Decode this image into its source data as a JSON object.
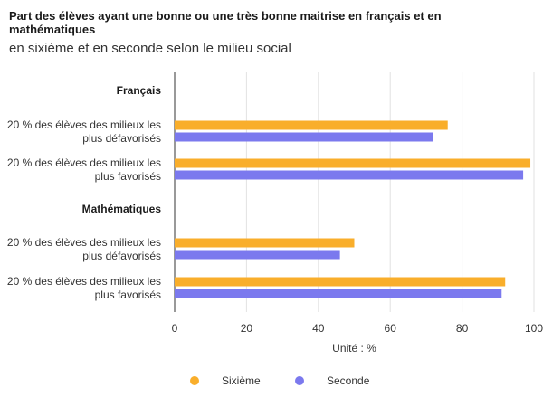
{
  "chart_data": {
    "type": "bar",
    "orientation": "horizontal",
    "title": "Part des élèves ayant une bonne ou une très bonne maitrise en français et en mathématiques",
    "subtitle": "en sixième et en seconde selon le milieu social",
    "xlabel": "Unité : %",
    "xlim": [
      0,
      100
    ],
    "xticks": [
      "0",
      "20",
      "40",
      "60",
      "80",
      "100"
    ],
    "groups": [
      {
        "name": "Français",
        "categories": [
          {
            "label_lines": [
              "20 % des élèves des milieux les",
              "plus défavorisés"
            ],
            "values": [
              76,
              72
            ]
          },
          {
            "label_lines": [
              "20 % des élèves des milieux les",
              "plus favorisés"
            ],
            "values": [
              99,
              97
            ]
          }
        ]
      },
      {
        "name": "Mathématiques",
        "categories": [
          {
            "label_lines": [
              "20 % des élèves des milieux les",
              "plus défavorisés"
            ],
            "values": [
              50,
              46
            ]
          },
          {
            "label_lines": [
              "20 % des élèves des milieux les",
              "plus favorisés"
            ],
            "values": [
              92,
              91
            ]
          }
        ]
      }
    ],
    "series": [
      {
        "name": "Sixième",
        "color": "#F9AE2B"
      },
      {
        "name": "Seconde",
        "color": "#7B79EE"
      }
    ],
    "grid": "vertical",
    "legend": "bottom"
  }
}
